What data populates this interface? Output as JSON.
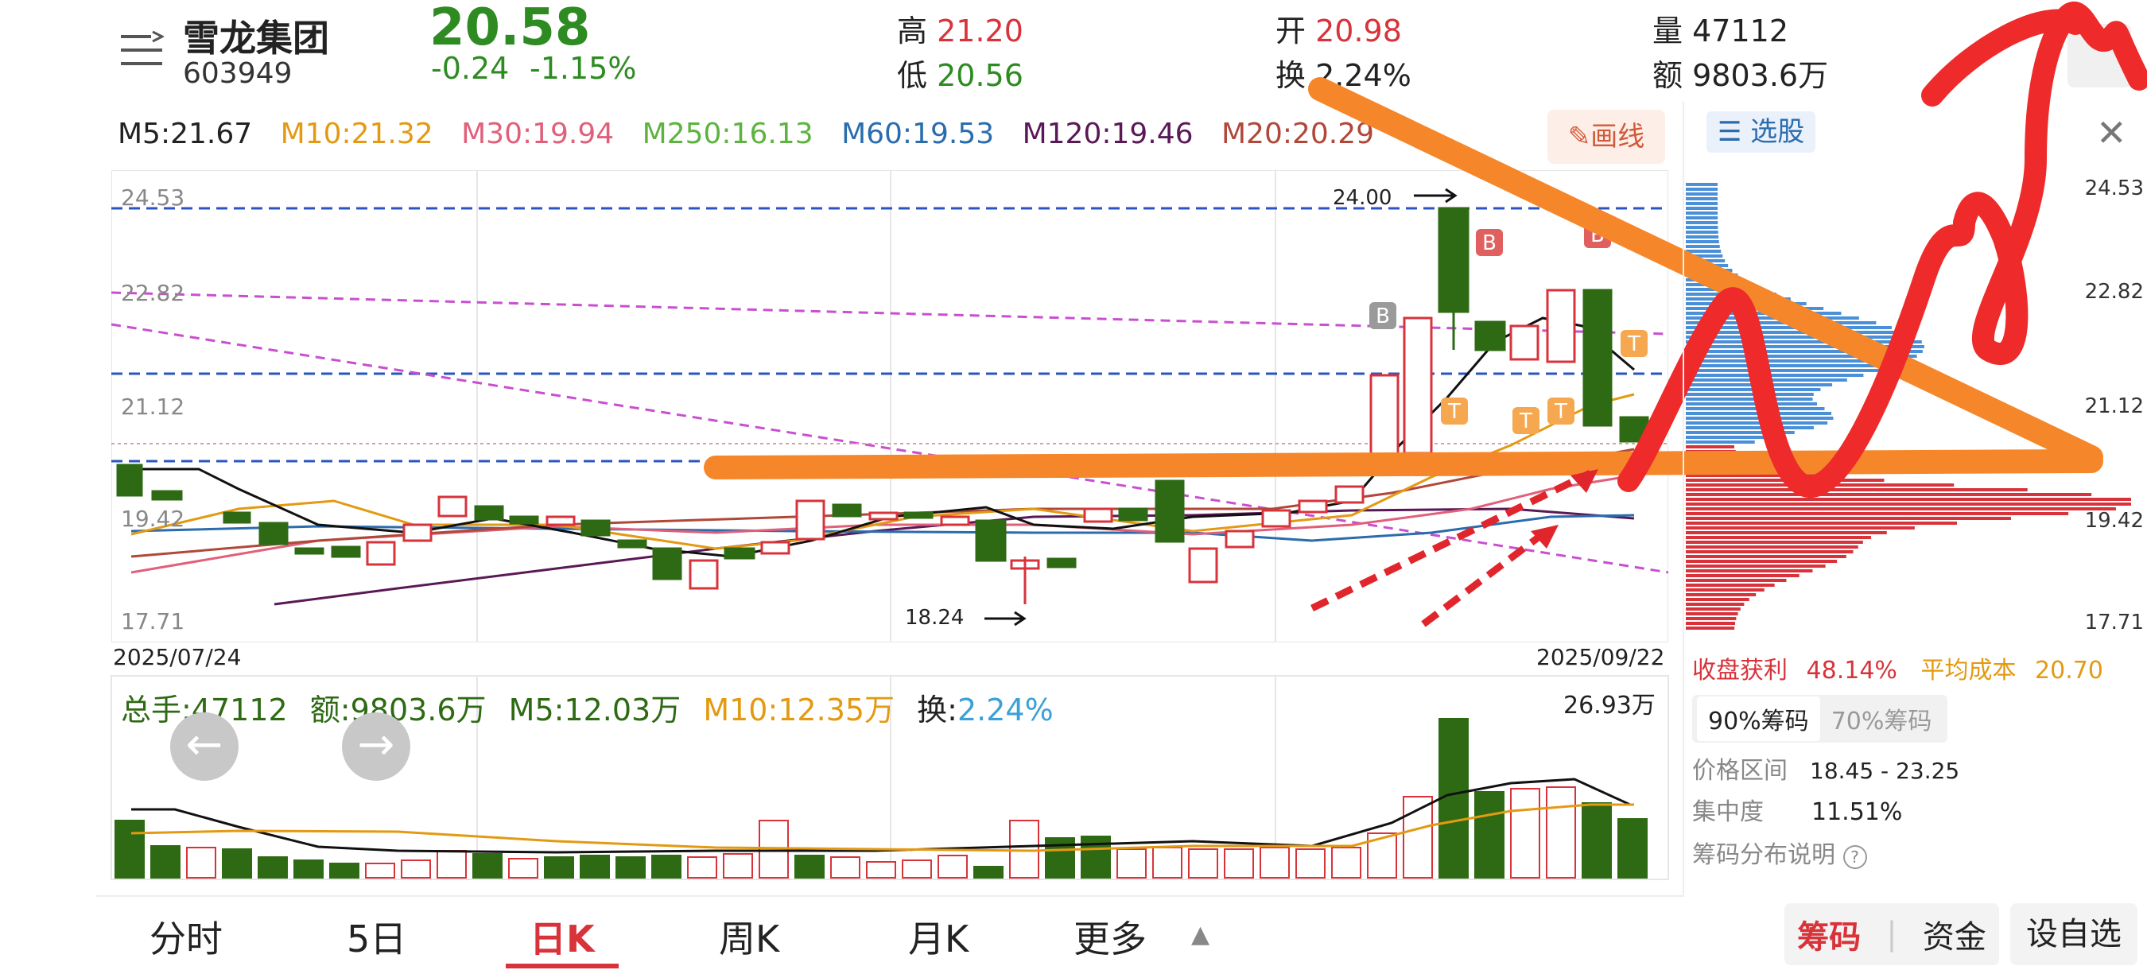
{
  "stock": {
    "name": "雪龙集团",
    "code": "603949",
    "price": "20.58",
    "change": "-0.24",
    "change_pct": "-1.15%"
  },
  "quote": {
    "high_label": "高",
    "high": "21.20",
    "low_label": "低",
    "low": "20.56",
    "open_label": "开",
    "open": "20.98",
    "turnover_label": "换",
    "turnover": "2.24%",
    "volume_label": "量",
    "volume": "47112",
    "amount_label": "额",
    "amount": "9803.6万"
  },
  "ma": [
    {
      "text": "M5:21.67",
      "color": "#222222"
    },
    {
      "text": "M10:21.32",
      "color": "#e39a12"
    },
    {
      "text": "M30:19.94",
      "color": "#e0607a"
    },
    {
      "text": "M250:16.13",
      "color": "#5db33f"
    },
    {
      "text": "M60:19.53",
      "color": "#2a6cad"
    },
    {
      "text": "M120:19.46",
      "color": "#5a1857"
    },
    {
      "text": "M20:20.29",
      "color": "#b0483a"
    }
  ],
  "draw_button": "画线",
  "select_stock": "选股",
  "chart": {
    "y_labels_left": [
      "24.53",
      "22.82",
      "21.12",
      "19.42",
      "17.71"
    ],
    "y_labels_right": [
      "24.53",
      "22.82",
      "21.12",
      "19.42",
      "17.71"
    ],
    "date_start": "2025/07/24",
    "date_end": "2025/09/22",
    "annot_high": "24.00",
    "annot_low": "18.24",
    "markers": {
      "b": "B",
      "t": "T"
    }
  },
  "volume": {
    "total_hands": "总手:47112",
    "amount": "额:9803.6万",
    "m5": "M5:12.03万",
    "m10": "M10:12.35万",
    "turnover_label": "换:",
    "turnover": "2.24%",
    "max": "26.93万"
  },
  "chips": {
    "profit_label": "收盘获利",
    "profit": "48.14%",
    "avg_cost_label": "平均成本",
    "avg_cost": "20.70",
    "tab90": "90%筹码",
    "tab70": "70%筹码",
    "range_label": "价格区间",
    "range": "18.45 - 23.25",
    "conc_label": "集中度",
    "conc": "11.51%",
    "help": "筹码分布说明"
  },
  "tabs": [
    "分时",
    "5日",
    "日K",
    "周K",
    "月K",
    "更多"
  ],
  "bottom_buttons": {
    "chips": "筹码",
    "funds": "资金",
    "watch": "设自选"
  },
  "icons": {
    "menu": "menu-icon",
    "pen": "pen-icon",
    "close": "close-icon",
    "prev": "arrow-left-icon",
    "next": "arrow-right-icon",
    "help": "question-icon",
    "more": "caret-up-icon",
    "select": "list-icon"
  }
}
